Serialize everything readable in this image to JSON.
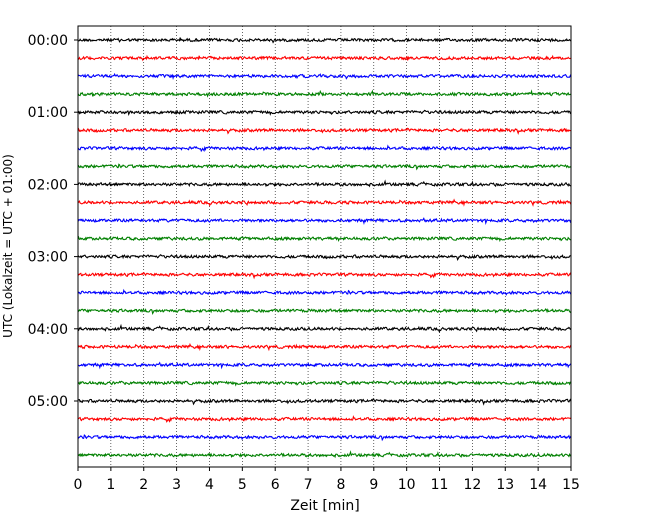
{
  "chart_data": {
    "type": "line",
    "title": "",
    "xlabel": "Zeit  [min]",
    "ylabel": "UTC (Lokalzeit = UTC + 01:00)",
    "xlim": [
      0,
      15
    ],
    "x_ticks": [
      "0",
      "1",
      "2",
      "3",
      "4",
      "5",
      "6",
      "7",
      "8",
      "9",
      "10",
      "11",
      "12",
      "13",
      "14",
      "15"
    ],
    "y_ticks": [
      "00:00",
      "01:00",
      "02:00",
      "03:00",
      "04:00",
      "05:00"
    ],
    "grid": "vertical dotted",
    "trace_interval_min": 15,
    "trace_count": 24,
    "trace_colors": [
      "#000000",
      "#ff0000",
      "#0000ff",
      "#008000"
    ]
  }
}
